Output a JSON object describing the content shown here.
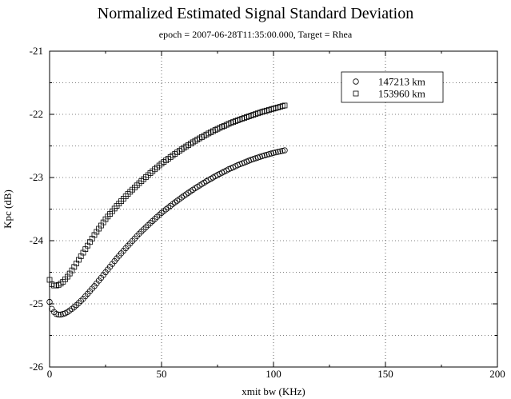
{
  "chart_data": {
    "type": "scatter",
    "title": "Normalized Estimated Signal Standard Deviation",
    "subtitle": "epoch = 2007-06-28T11:35:00.000, Target = Rhea",
    "xlabel": "xmit bw (KHz)",
    "ylabel": "Kpc (dB)",
    "xlim": [
      0,
      200
    ],
    "ylim": [
      -26,
      -21
    ],
    "xticks": [
      "0",
      "50",
      "100",
      "150",
      "200"
    ],
    "yticks": [
      "-26",
      "-25",
      "-24",
      "-23",
      "-22",
      "-21"
    ],
    "grid": true,
    "legend_position": "top-right",
    "series": [
      {
        "name": "147213 km",
        "marker": "circle",
        "x": [
          0,
          1,
          2,
          3,
          4,
          5,
          6,
          7,
          8,
          10,
          12,
          15,
          20,
          25,
          30,
          35,
          40,
          45,
          50,
          55,
          60,
          65,
          70,
          75,
          80,
          85,
          90,
          95,
          100,
          105
        ],
        "y": [
          -24.97,
          -25.08,
          -25.13,
          -25.16,
          -25.17,
          -25.17,
          -25.16,
          -25.15,
          -25.13,
          -25.08,
          -25.02,
          -24.92,
          -24.72,
          -24.5,
          -24.28,
          -24.08,
          -23.89,
          -23.72,
          -23.56,
          -23.42,
          -23.29,
          -23.17,
          -23.06,
          -22.96,
          -22.87,
          -22.79,
          -22.72,
          -22.66,
          -22.61,
          -22.57
        ]
      },
      {
        "name": "153960 km",
        "marker": "square",
        "x": [
          0,
          1,
          2,
          3,
          4,
          5,
          6,
          7,
          8,
          10,
          12,
          15,
          20,
          25,
          30,
          35,
          40,
          45,
          50,
          55,
          60,
          65,
          70,
          75,
          80,
          85,
          90,
          95,
          100,
          105
        ],
        "y": [
          -24.62,
          -24.69,
          -24.71,
          -24.71,
          -24.7,
          -24.68,
          -24.65,
          -24.61,
          -24.57,
          -24.47,
          -24.36,
          -24.19,
          -23.91,
          -23.66,
          -23.45,
          -23.26,
          -23.09,
          -22.93,
          -22.78,
          -22.65,
          -22.53,
          -22.42,
          -22.32,
          -22.23,
          -22.15,
          -22.08,
          -22.02,
          -21.96,
          -21.91,
          -21.86
        ]
      }
    ]
  }
}
